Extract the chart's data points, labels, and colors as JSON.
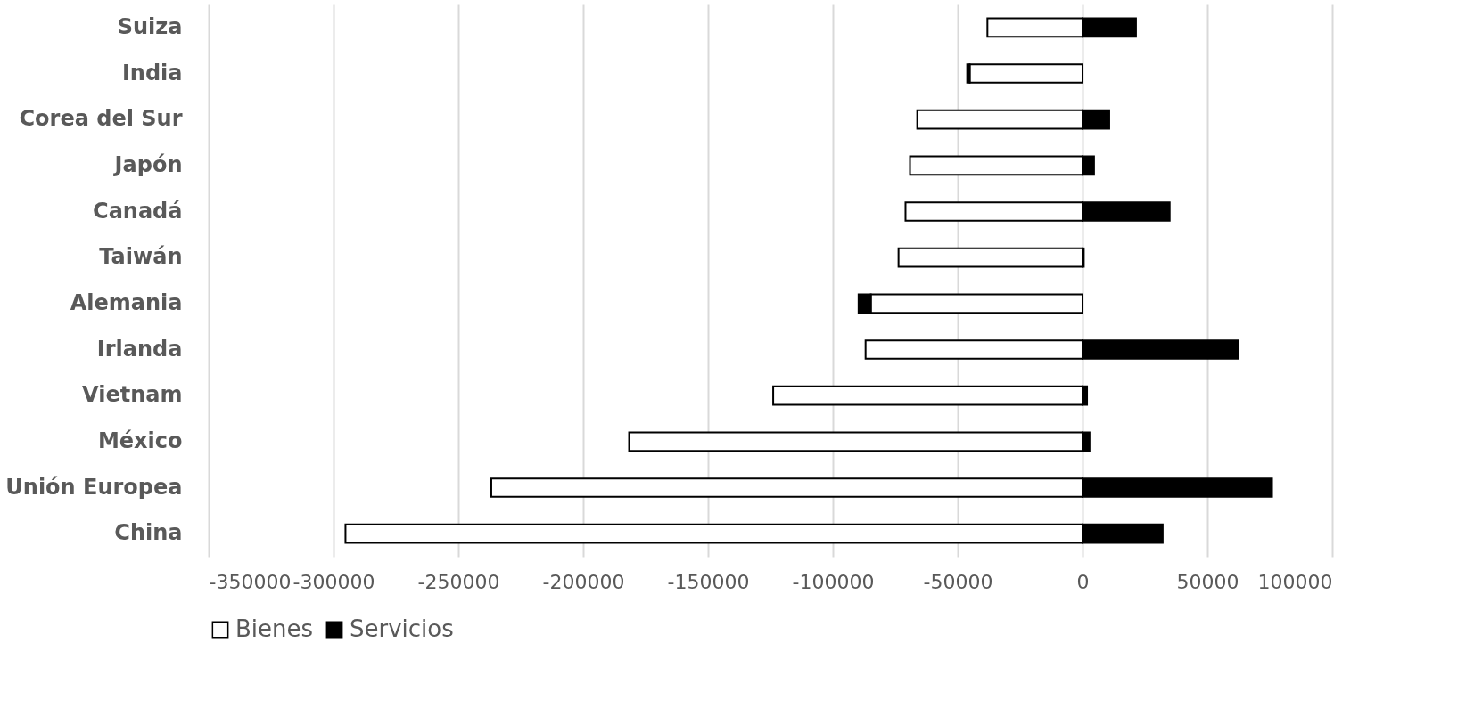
{
  "chart_data": {
    "type": "bar",
    "orientation": "horizontal",
    "stacked": true,
    "categories": [
      "Suiza",
      "India",
      "Corea del Sur",
      "Japón",
      "Canadá",
      "Taiwán",
      "Alemania",
      "Irlanda",
      "Vietnam",
      "México",
      "Unión Europea",
      "China"
    ],
    "series": [
      {
        "name": "Bienes",
        "color": "#ffffff",
        "values": [
          -38100,
          -45200,
          -66200,
          -69100,
          -70900,
          -73700,
          -84800,
          -86900,
          -123900,
          -181600,
          -236800,
          -295200
        ]
      },
      {
        "name": "Servicios",
        "color": "#000000",
        "values": [
          21400,
          -1000,
          10700,
          4600,
          34900,
          500,
          -4900,
          62300,
          1800,
          2800,
          75900,
          32100
        ]
      }
    ],
    "xlim": [
      -350000,
      100000
    ],
    "xticks": [
      -350000,
      -300000,
      -250000,
      -200000,
      -150000,
      -100000,
      -50000,
      0,
      50000,
      100000
    ],
    "grid": "x",
    "legend": "bottom"
  }
}
